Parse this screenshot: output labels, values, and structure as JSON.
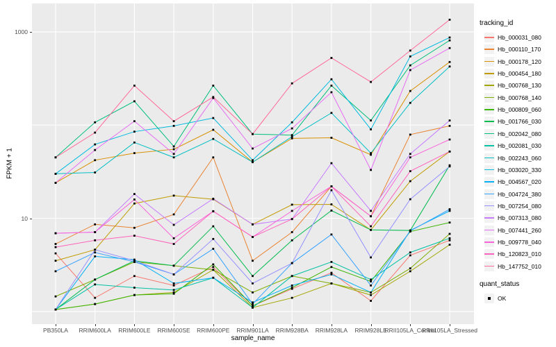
{
  "chart_data": {
    "type": "line",
    "title": "",
    "xlabel": "sample_name",
    "ylabel": "FPKM + 1",
    "y_scale": "log10",
    "ylim": [
      1,
      1400
    ],
    "grid": "on",
    "legend_position": "right",
    "legend_title": "tracking_id",
    "quant_status_legend": {
      "title": "quant_status",
      "items": [
        "OK"
      ]
    },
    "point_marker": "black-square",
    "y_ticks": [
      {
        "label": "1000",
        "value": 1000
      },
      {
        "label": "10",
        "value": 10
      }
    ],
    "gridline_values": [
      1,
      10,
      100,
      1000
    ],
    "categories": [
      "PB350LA",
      "RRIM600LA",
      "RRIM600LE",
      "RRIM600SE",
      "RRIM600PE",
      "RRIM901LA",
      "RRIM928BA",
      "RRIM928LA",
      "RRIM928LE",
      "RRII105LA_Control",
      "RRII105LA_Stressed"
    ],
    "series": [
      {
        "name": "Hb_000031_080",
        "color": "#F8766D",
        "values": [
          4.2,
          1.4,
          2.4,
          1.9,
          3.0,
          1.15,
          1.75,
          2.6,
          1.3,
          4.0,
          5.8
        ]
      },
      {
        "name": "Hb_000110_170",
        "color": "#EA8331",
        "values": [
          5.3,
          8.6,
          7.9,
          11,
          45,
          3.5,
          7.1,
          22,
          10.5,
          79,
          98
        ]
      },
      {
        "name": "Hb_000178_120",
        "color": "#D89000",
        "values": [
          24,
          42,
          50,
          55,
          89,
          40,
          72,
          73,
          48,
          232,
          475
        ]
      },
      {
        "name": "Hb_000454_180",
        "color": "#C09B00",
        "values": [
          3.5,
          4.6,
          14.4,
          17.5,
          16,
          8.6,
          14,
          14.1,
          7.5,
          25,
          52
        ]
      },
      {
        "name": "Hb_000768_130",
        "color": "#A3A500",
        "values": [
          1.05,
          1.2,
          1.5,
          1.6,
          2.8,
          1.1,
          1.4,
          2.0,
          1.5,
          2.7,
          5.2
        ]
      },
      {
        "name": "Hb_000768_140",
        "color": "#7CAE00",
        "values": [
          1.45,
          2.2,
          3.4,
          3.1,
          2.8,
          1.6,
          2.4,
          2.0,
          1.6,
          2.9,
          6.8
        ]
      },
      {
        "name": "Hb_000809_060",
        "color": "#39B600",
        "values": [
          1.05,
          1.2,
          1.5,
          1.55,
          3.2,
          1.15,
          1.8,
          3.0,
          2.1,
          7.2,
          9.0
        ]
      },
      {
        "name": "Hb_001766_030",
        "color": "#00BB4E",
        "values": [
          1.05,
          2.2,
          3.5,
          3.1,
          8.2,
          2.4,
          5.8,
          12.1,
          7.5,
          7.4,
          37
        ]
      },
      {
        "name": "Hb_002042_080",
        "color": "#00BF7D",
        "values": [
          45,
          107,
          180,
          59,
          265,
          80,
          78,
          265,
          112,
          437,
          810
        ]
      },
      {
        "name": "Hb_002081_030",
        "color": "#00C1A3",
        "values": [
          1.05,
          1.95,
          1.8,
          1.7,
          2.3,
          1.1,
          2.4,
          3.4,
          2.2,
          4.3,
          6.1
        ]
      },
      {
        "name": "Hb_002243_060",
        "color": "#00BFC4",
        "values": [
          30,
          31,
          65,
          45,
          71,
          40,
          75,
          135,
          50,
          173,
          425
        ]
      },
      {
        "name": "Hb_003020_330",
        "color": "#00BAE0",
        "values": [
          30,
          62,
          85,
          98,
          119,
          42,
          107,
          310,
          90,
          545,
          870
        ]
      },
      {
        "name": "Hb_004567_020",
        "color": "#00B0F6",
        "values": [
          1.05,
          3.9,
          3.6,
          2.0,
          2.3,
          1.25,
          1.9,
          2.5,
          1.6,
          7.4,
          12
        ]
      },
      {
        "name": "Hb_004724_380",
        "color": "#35A2FF",
        "values": [
          2.7,
          4.3,
          3.4,
          2.5,
          4.7,
          1.2,
          3.3,
          6.7,
          1.9,
          7.3,
          12.5
        ]
      },
      {
        "name": "Hb_007254_080",
        "color": "#9590FF",
        "values": [
          1.05,
          4.6,
          3.5,
          2.5,
          6.0,
          2.0,
          3.3,
          20,
          3.8,
          16,
          36
        ]
      },
      {
        "name": "Hb_007313_080",
        "color": "#C77CFF",
        "values": [
          6.9,
          7.1,
          18.2,
          8.5,
          16.2,
          8.6,
          9.8,
          39,
          12,
          49,
          112
        ]
      },
      {
        "name": "Hb_007441_260",
        "color": "#E76BF3",
        "values": [
          24,
          54,
          110,
          49,
          195,
          56,
          92,
          225,
          33,
          389,
          670
        ]
      },
      {
        "name": "Hb_009778_040",
        "color": "#FA62DB",
        "values": [
          6.9,
          7.1,
          15.9,
          6.1,
          11.9,
          6.3,
          12,
          22,
          10.5,
          45,
          70
        ]
      },
      {
        "name": "Hb_120823_010",
        "color": "#FF62BC",
        "values": [
          4.9,
          5.8,
          6.5,
          5.3,
          11.9,
          6.3,
          9.8,
          22,
          8.2,
          32,
          52
        ]
      },
      {
        "name": "Hb_147752_010",
        "color": "#FF6A98",
        "values": [
          45,
          83,
          265,
          110,
          200,
          80,
          280,
          525,
          290,
          630,
          1350
        ]
      }
    ]
  },
  "style_colors": {
    "panel_background": "#EBEBEB",
    "gridline": "#FFFFFF",
    "point": "#000000",
    "tick_text": "#4D4D4D",
    "legend_key_background": "#F2F2F2"
  }
}
